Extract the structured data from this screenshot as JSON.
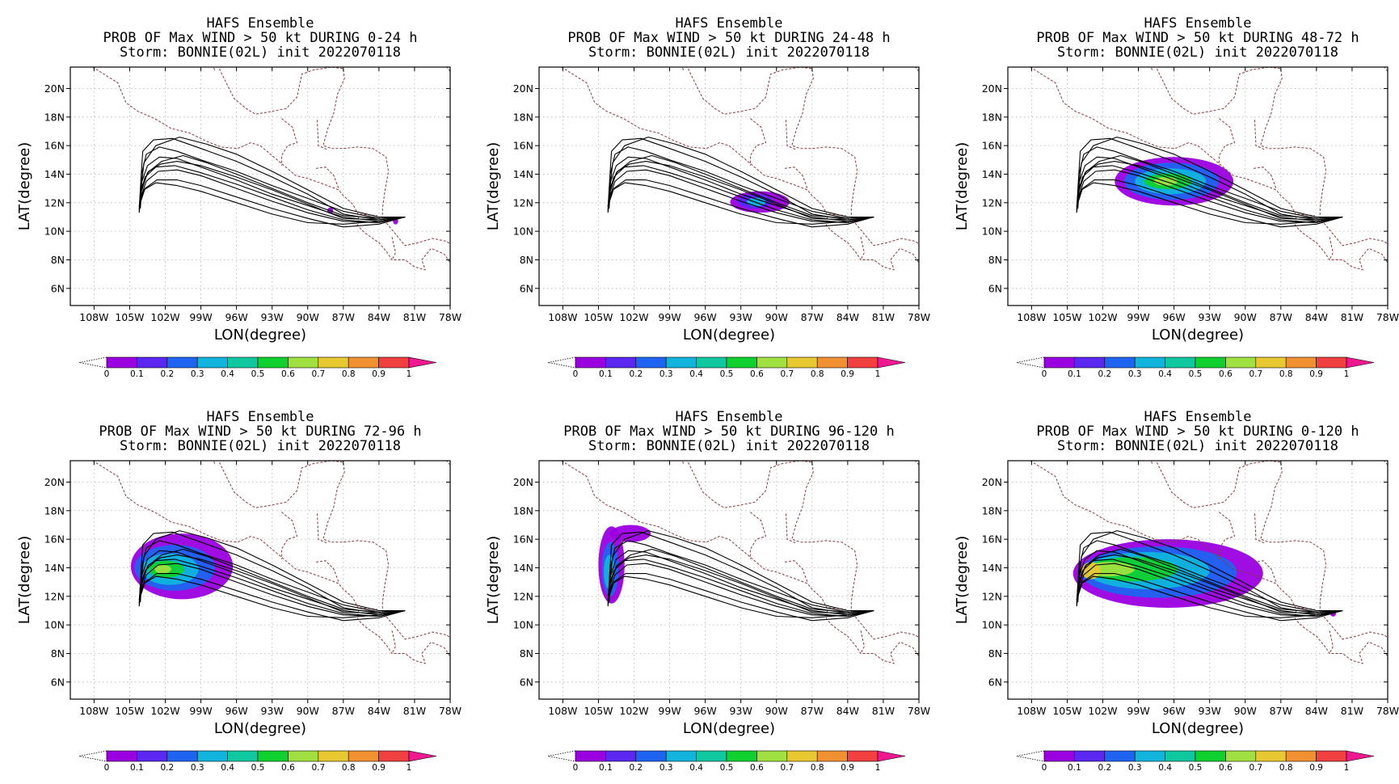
{
  "figure": {
    "ensemble": "HAFS Ensemble",
    "storm_line": "Storm: BONNIE(02L) init 2022070118",
    "x_axis_label": "LON(degree)",
    "y_axis_label": "LAT(degree)",
    "x_ticks": [
      "108W",
      "105W",
      "102W",
      "99W",
      "96W",
      "93W",
      "90W",
      "87W",
      "84W",
      "81W",
      "78W"
    ],
    "y_ticks": [
      "20N",
      "18N",
      "16N",
      "14N",
      "12N",
      "10N",
      "8N",
      "6N"
    ],
    "colorbar": {
      "labels": [
        "0",
        "0.1",
        "0.2",
        "0.3",
        "0.4",
        "0.5",
        "0.6",
        "0.7",
        "0.8",
        "0.9",
        "1"
      ],
      "colors": [
        "#9b00e0",
        "#5a28f0",
        "#1e64f0",
        "#10b4dc",
        "#10c8a0",
        "#10d030",
        "#a0e040",
        "#e8c830",
        "#f09030",
        "#f04040",
        "#f01890"
      ]
    },
    "colors": {
      "track": "#000000",
      "coast": "#8b3a3a",
      "grid": "#b0b0b0"
    }
  },
  "panels": [
    {
      "title": "PROB OF Max WIND > 50 kt DURING  0-24 h",
      "period": "0-24"
    },
    {
      "title": "PROB OF Max WIND > 50 kt DURING 24-48 h",
      "period": "24-48"
    },
    {
      "title": "PROB OF Max WIND > 50 kt DURING 48-72 h",
      "period": "48-72"
    },
    {
      "title": "PROB OF Max WIND > 50 kt DURING 72-96 h",
      "period": "72-96"
    },
    {
      "title": "PROB OF Max WIND > 50 kt DURING 96-120 h",
      "period": "96-120"
    },
    {
      "title": "PROB OF Max WIND > 50 kt DURING 0-120 h",
      "period": "0-120"
    }
  ],
  "map_extent": {
    "lon_range": [
      -110,
      -78
    ],
    "lat_range": [
      4.8,
      21.5
    ]
  },
  "tracks": [
    [
      [
        -81.8,
        11.0
      ],
      [
        -84,
        10.9
      ],
      [
        -87,
        11.4
      ],
      [
        -90,
        12.3
      ],
      [
        -93,
        13.2
      ],
      [
        -96,
        14.2
      ],
      [
        -99,
        15.0
      ],
      [
        -101,
        15.6
      ],
      [
        -102.5,
        15.9
      ],
      [
        -103.6,
        15.4
      ],
      [
        -104,
        14.0
      ],
      [
        -104.1,
        12.2
      ]
    ],
    [
      [
        -81.8,
        11.0
      ],
      [
        -84,
        10.7
      ],
      [
        -87,
        11.0
      ],
      [
        -90,
        11.8
      ],
      [
        -93,
        12.6
      ],
      [
        -96,
        13.6
      ],
      [
        -99,
        14.5
      ],
      [
        -101,
        15.1
      ],
      [
        -102.5,
        15.2
      ],
      [
        -103.5,
        14.6
      ],
      [
        -104,
        13.4
      ],
      [
        -104.1,
        11.8
      ]
    ],
    [
      [
        -81.8,
        11.0
      ],
      [
        -84,
        10.6
      ],
      [
        -87,
        10.7
      ],
      [
        -90,
        11.3
      ],
      [
        -93,
        12.1
      ],
      [
        -96,
        13.0
      ],
      [
        -99,
        13.9
      ],
      [
        -101,
        14.3
      ],
      [
        -102.6,
        14.2
      ],
      [
        -103.6,
        13.5
      ],
      [
        -104.1,
        12.3
      ],
      [
        -104.2,
        11.4
      ]
    ],
    [
      [
        -81.8,
        11.0
      ],
      [
        -84,
        10.8
      ],
      [
        -87,
        11.2
      ],
      [
        -90,
        12.6
      ],
      [
        -93,
        13.8
      ],
      [
        -96,
        14.9
      ],
      [
        -99,
        15.8
      ],
      [
        -101.4,
        16.5
      ],
      [
        -103,
        16.4
      ],
      [
        -103.9,
        15.6
      ],
      [
        -104.1,
        13.0
      ],
      [
        -104.2,
        11.5
      ]
    ],
    [
      [
        -81.8,
        11.0
      ],
      [
        -84,
        10.5
      ],
      [
        -87,
        10.3
      ],
      [
        -90,
        10.9
      ],
      [
        -93,
        11.6
      ],
      [
        -96,
        12.4
      ],
      [
        -99,
        13.2
      ],
      [
        -101,
        13.6
      ],
      [
        -102.7,
        13.6
      ],
      [
        -103.7,
        13.0
      ],
      [
        -104.1,
        12.0
      ],
      [
        -104.2,
        11.3
      ]
    ],
    [
      [
        -81.8,
        11.0
      ],
      [
        -84,
        10.9
      ],
      [
        -87,
        11.1
      ],
      [
        -90,
        12.0
      ],
      [
        -93,
        13.0
      ],
      [
        -96,
        14.0
      ],
      [
        -98.5,
        14.8
      ],
      [
        -100.5,
        15.3
      ],
      [
        -102.3,
        14.9
      ],
      [
        -103.5,
        14.1
      ],
      [
        -104,
        12.8
      ],
      [
        -104.1,
        11.6
      ]
    ],
    [
      [
        -81.8,
        11.0
      ],
      [
        -84,
        10.7
      ],
      [
        -87,
        10.5
      ],
      [
        -90,
        10.6
      ],
      [
        -93,
        11.2
      ],
      [
        -96,
        12.0
      ],
      [
        -99,
        12.8
      ],
      [
        -101,
        13.2
      ],
      [
        -102.8,
        13.4
      ],
      [
        -103.8,
        12.9
      ],
      [
        -104.2,
        11.8
      ]
    ],
    [
      [
        -81.8,
        11.0
      ],
      [
        -84,
        11.0
      ],
      [
        -87,
        11.6
      ],
      [
        -90,
        12.9
      ],
      [
        -93,
        14.2
      ],
      [
        -96,
        15.4
      ],
      [
        -98.5,
        16.1
      ],
      [
        -100.8,
        16.6
      ],
      [
        -102.8,
        16.0
      ],
      [
        -103.8,
        14.8
      ],
      [
        -104.1,
        12.5
      ]
    ],
    [
      [
        -81.8,
        11.0
      ],
      [
        -84,
        10.6
      ],
      [
        -87,
        10.8
      ],
      [
        -90,
        11.5
      ],
      [
        -93,
        12.4
      ],
      [
        -96,
        13.3
      ],
      [
        -99,
        14.1
      ],
      [
        -101.2,
        14.6
      ],
      [
        -102.8,
        14.5
      ],
      [
        -103.7,
        13.8
      ],
      [
        -104.1,
        12.6
      ],
      [
        -104.2,
        11.7
      ]
    ],
    [
      [
        -81.8,
        11.0
      ],
      [
        -84,
        10.8
      ],
      [
        -87,
        10.9
      ],
      [
        -90,
        11.9
      ],
      [
        -93,
        12.9
      ],
      [
        -96,
        13.8
      ],
      [
        -99,
        14.6
      ],
      [
        -101,
        14.9
      ],
      [
        -102.4,
        14.7
      ],
      [
        -103.4,
        14.2
      ],
      [
        -104,
        13.1
      ],
      [
        -104.1,
        11.9
      ]
    ]
  ],
  "coast": [
    [
      [
        -113,
        23.5
      ],
      [
        -110.5,
        22.6
      ],
      [
        -108.7,
        21.8
      ],
      [
        -106,
        20.4
      ],
      [
        -105.3,
        19.0
      ],
      [
        -104.3,
        18.4
      ],
      [
        -102.9,
        17.9
      ],
      [
        -101.5,
        17.2
      ],
      [
        -100,
        16.9
      ],
      [
        -98.5,
        16.3
      ],
      [
        -97.3,
        15.9
      ],
      [
        -95.9,
        15.8
      ],
      [
        -94.8,
        16.2
      ],
      [
        -94.0,
        16.0
      ],
      [
        -93,
        15.3
      ],
      [
        -92,
        14.6
      ],
      [
        -91,
        13.9
      ],
      [
        -90,
        13.7
      ],
      [
        -89,
        13.4
      ],
      [
        -88,
        13.1
      ],
      [
        -87.4,
        12.9
      ],
      [
        -87,
        12.5
      ],
      [
        -86.2,
        11.9
      ],
      [
        -85.7,
        11.1
      ],
      [
        -85.8,
        10.4
      ],
      [
        -85.2,
        9.9
      ],
      [
        -84.7,
        9.6
      ],
      [
        -84.0,
        9.2
      ],
      [
        -83.3,
        8.5
      ],
      [
        -82.9,
        8.0
      ],
      [
        -81.8,
        8.0
      ],
      [
        -81.0,
        7.5
      ],
      [
        -80.1,
        7.3
      ],
      [
        -80.4,
        8.0
      ],
      [
        -79.6,
        8.8
      ],
      [
        -78.5,
        8.4
      ],
      [
        -77.6,
        7.3
      ]
    ],
    [
      [
        -97.4,
        27.0
      ],
      [
        -97.7,
        24.6
      ],
      [
        -97.8,
        22.7
      ],
      [
        -97.4,
        21.3
      ],
      [
        -96.2,
        19.3
      ],
      [
        -95.2,
        18.6
      ],
      [
        -94.4,
        18.2
      ],
      [
        -93,
        18.4
      ],
      [
        -91.8,
        18.6
      ],
      [
        -90.9,
        19.4
      ],
      [
        -90.5,
        21.0
      ],
      [
        -89.5,
        21.3
      ],
      [
        -88,
        21.5
      ],
      [
        -87,
        21.4
      ],
      [
        -86.9,
        20.7
      ],
      [
        -87.5,
        19.6
      ],
      [
        -87.8,
        18.3
      ],
      [
        -88.3,
        17.2
      ],
      [
        -88.7,
        16.0
      ],
      [
        -88.0,
        15.8
      ],
      [
        -87.0,
        15.8
      ],
      [
        -85.8,
        15.9
      ],
      [
        -84.5,
        15.8
      ],
      [
        -83.4,
        15.2
      ],
      [
        -83.2,
        14.2
      ],
      [
        -83.5,
        12.8
      ],
      [
        -83.7,
        11.6
      ],
      [
        -83.7,
        10.9
      ],
      [
        -82.8,
        10.0
      ],
      [
        -81.8,
        9.0
      ],
      [
        -80.7,
        9.2
      ],
      [
        -79.5,
        9.5
      ],
      [
        -78.3,
        9.3
      ],
      [
        -77.4,
        8.7
      ]
    ],
    [
      [
        -85.0,
        21.9
      ],
      [
        -83.5,
        22.6
      ],
      [
        -82.0,
        23.1
      ],
      [
        -80.0,
        23.0
      ],
      [
        -78.0,
        22.5
      ]
    ],
    [
      [
        -104,
        25.5
      ],
      [
        -102.5,
        24.6
      ],
      [
        -100.8,
        24.1
      ],
      [
        -99.5,
        23.6
      ],
      [
        -98.3,
        22.4
      ],
      [
        -97.8,
        21.2
      ]
    ],
    [
      [
        -92.2,
        17.9
      ],
      [
        -91.3,
        17.3
      ],
      [
        -90.9,
        16.2
      ],
      [
        -91.7,
        16.0
      ],
      [
        -92.2,
        15.3
      ],
      [
        -92.2,
        14.6
      ]
    ],
    [
      [
        -89.2,
        17.8
      ],
      [
        -89.1,
        16.0
      ],
      [
        -88.3,
        15.7
      ]
    ],
    [
      [
        -89.3,
        14.4
      ],
      [
        -88.5,
        14.5
      ],
      [
        -87.8,
        13.9
      ],
      [
        -87.4,
        13.0
      ]
    ],
    [
      [
        -85.6,
        11.2
      ],
      [
        -84.2,
        11.1
      ],
      [
        -83.9,
        10.8
      ]
    ],
    [
      [
        -82.9,
        9.6
      ],
      [
        -82.6,
        8.5
      ],
      [
        -82.9,
        8.0
      ]
    ],
    [
      [
        -77.3,
        8.4
      ],
      [
        -77.0,
        7.5
      ]
    ],
    [
      [
        -79.0,
        22.2
      ],
      [
        -78,
        21.2
      ]
    ]
  ],
  "prob_swaths": [
    [
      {
        "lon": -88.1,
        "lat": 11.45,
        "rx": 0.25,
        "ry": 0.22,
        "p": 0.05
      },
      {
        "lon": -82.6,
        "lat": 10.7,
        "rx": 0.22,
        "ry": 0.22,
        "p": 0.05
      }
    ],
    [
      {
        "lon": -91.4,
        "lat": 12.05,
        "rx": 2.5,
        "ry": 0.75,
        "p": 0.05
      },
      {
        "lon": -91.8,
        "lat": 12.1,
        "rx": 1.5,
        "ry": 0.5,
        "p": 0.15
      },
      {
        "lon": -91.7,
        "lat": 12.05,
        "rx": 0.8,
        "ry": 0.3,
        "p": 0.3
      }
    ],
    [
      {
        "lon": -96.0,
        "lat": 13.5,
        "rx": 5.0,
        "ry": 1.7,
        "p": 0.05
      },
      {
        "lon": -96.2,
        "lat": 13.5,
        "rx": 4.0,
        "ry": 1.3,
        "p": 0.2
      },
      {
        "lon": -96.3,
        "lat": 13.5,
        "rx": 3.0,
        "ry": 0.9,
        "p": 0.35
      },
      {
        "lon": -96.5,
        "lat": 13.5,
        "rx": 2.0,
        "ry": 0.55,
        "p": 0.5
      },
      {
        "lon": -96.7,
        "lat": 13.5,
        "rx": 1.0,
        "ry": 0.3,
        "p": 0.6
      }
    ],
    [
      {
        "lon": -100.6,
        "lat": 14.1,
        "rx": 4.3,
        "ry": 2.3,
        "p": 0.05
      },
      {
        "lon": -101.2,
        "lat": 14.0,
        "rx": 3.4,
        "ry": 1.6,
        "p": 0.2
      },
      {
        "lon": -101.6,
        "lat": 13.9,
        "rx": 2.4,
        "ry": 1.1,
        "p": 0.35
      },
      {
        "lon": -101.9,
        "lat": 13.9,
        "rx": 1.5,
        "ry": 0.6,
        "p": 0.55
      },
      {
        "lon": -102.2,
        "lat": 13.9,
        "rx": 0.7,
        "ry": 0.3,
        "p": 0.65
      }
    ],
    [
      {
        "lon": -103.9,
        "lat": 14.2,
        "rx": 1.1,
        "ry": 2.7,
        "p": 0.05
      },
      {
        "lon": -102.3,
        "lat": 16.4,
        "rx": 1.7,
        "ry": 0.6,
        "p": 0.05
      },
      {
        "lon": -104.0,
        "lat": 13.9,
        "rx": 0.7,
        "ry": 1.9,
        "p": 0.25
      },
      {
        "lon": -104.1,
        "lat": 13.7,
        "rx": 0.45,
        "ry": 1.2,
        "p": 0.35
      }
    ],
    [
      {
        "lon": -96.5,
        "lat": 13.6,
        "rx": 8.0,
        "ry": 2.4,
        "p": 0.05
      },
      {
        "lon": -97.3,
        "lat": 13.7,
        "rx": 6.6,
        "ry": 1.8,
        "p": 0.2
      },
      {
        "lon": -98.2,
        "lat": 13.8,
        "rx": 5.2,
        "ry": 1.3,
        "p": 0.35
      },
      {
        "lon": -99.5,
        "lat": 13.9,
        "rx": 3.8,
        "ry": 0.85,
        "p": 0.5
      },
      {
        "lon": -101.5,
        "lat": 13.9,
        "rx": 2.2,
        "ry": 0.5,
        "p": 0.6
      },
      {
        "lon": -103.0,
        "lat": 13.8,
        "rx": 0.8,
        "ry": 0.6,
        "p": 0.7
      },
      {
        "lon": -82.6,
        "lat": 10.8,
        "rx": 0.25,
        "ry": 0.22,
        "p": 0.05
      }
    ]
  ]
}
